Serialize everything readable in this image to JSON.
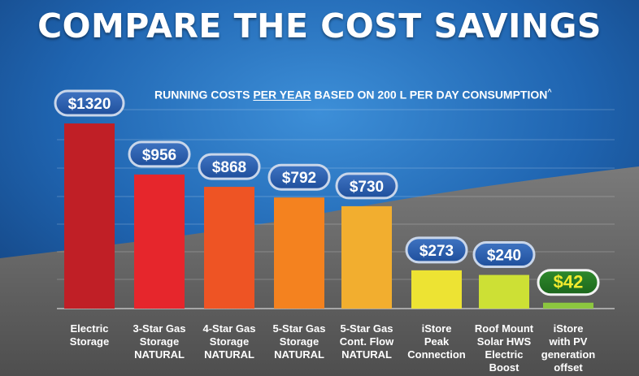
{
  "headline": "COMPARE THE COST SAVINGS",
  "subtitle": {
    "pre": "RUNNING COSTS ",
    "underlined": "PER YEAR",
    "post": " BASED ON 200 L PER DAY CONSUMPTION",
    "footnote_mark": "^"
  },
  "chart_data": {
    "type": "bar",
    "title": "RUNNING COSTS PER YEAR BASED ON 200 L PER DAY CONSUMPTION^",
    "ylabel": "",
    "xlabel": "",
    "ylim": [
      0,
      1320
    ],
    "grid": true,
    "categories": [
      [
        "Electric",
        "Storage"
      ],
      [
        "3-Star Gas",
        "Storage",
        "NATURAL"
      ],
      [
        "4-Star Gas",
        "Storage",
        "NATURAL"
      ],
      [
        "5-Star Gas",
        "Storage",
        "NATURAL"
      ],
      [
        "5-Star Gas",
        "Cont. Flow",
        "NATURAL"
      ],
      [
        "iStore",
        "Peak",
        "Connection"
      ],
      [
        "Roof Mount",
        "Solar HWS",
        "Electric",
        "Boost"
      ],
      [
        "iStore",
        "with PV",
        "generation",
        "offset"
      ]
    ],
    "values": [
      1320,
      956,
      868,
      792,
      730,
      273,
      240,
      42
    ],
    "value_labels": [
      "$1320",
      "$956",
      "$868",
      "$792",
      "$730",
      "$273",
      "$240",
      "$42"
    ],
    "colors": [
      "#c01f26",
      "#e6262c",
      "#ee5424",
      "#f4821f",
      "#f2ae2f",
      "#ede333",
      "#cde035",
      "#8cc63f"
    ],
    "highlight_index": 7
  }
}
